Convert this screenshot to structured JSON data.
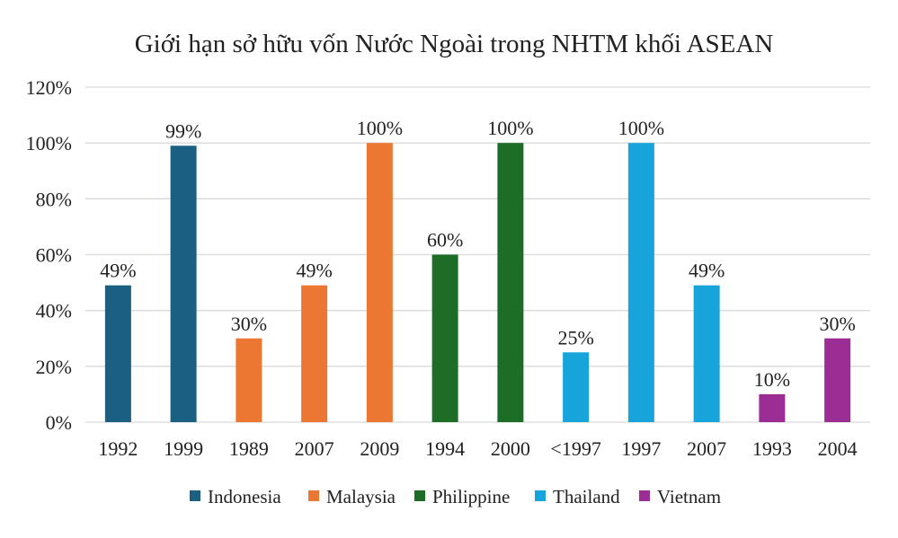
{
  "chart_data": {
    "type": "bar",
    "title": "Giới hạn sở hữu vốn Nước Ngoài trong NHTM khối ASEAN",
    "xlabel": "",
    "ylabel": "",
    "ylim": [
      0,
      120
    ],
    "yticks": [
      "0%",
      "20%",
      "40%",
      "60%",
      "80%",
      "100%",
      "120%"
    ],
    "grid": true,
    "legend_position": "bottom",
    "categories": [
      "1992",
      "1999",
      "1989",
      "2007",
      "2009",
      "1994",
      "2000",
      "<1997",
      "1997",
      "2007",
      "1993",
      "2004"
    ],
    "series": [
      {
        "name": "Indonesia",
        "color": "#1b5f82",
        "values": [
          49,
          99,
          null,
          null,
          null,
          null,
          null,
          null,
          null,
          null,
          null,
          null
        ]
      },
      {
        "name": "Malaysia",
        "color": "#ec7732",
        "values": [
          null,
          null,
          30,
          49,
          100,
          null,
          null,
          null,
          null,
          null,
          null,
          null
        ]
      },
      {
        "name": "Philippine",
        "color": "#1e6d27",
        "values": [
          null,
          null,
          null,
          null,
          null,
          60,
          100,
          null,
          null,
          null,
          null,
          null
        ]
      },
      {
        "name": "Thailand",
        "color": "#16a4db",
        "values": [
          null,
          null,
          null,
          null,
          null,
          null,
          null,
          25,
          100,
          49,
          null,
          null
        ]
      },
      {
        "name": "Vietnam",
        "color": "#9c2d95",
        "values": [
          null,
          null,
          null,
          null,
          null,
          null,
          null,
          null,
          null,
          null,
          10,
          30
        ]
      }
    ],
    "data_labels": [
      "49%",
      "99%",
      "30%",
      "49%",
      "100%",
      "60%",
      "100%",
      "25%",
      "100%",
      "49%",
      "10%",
      "30%"
    ]
  }
}
